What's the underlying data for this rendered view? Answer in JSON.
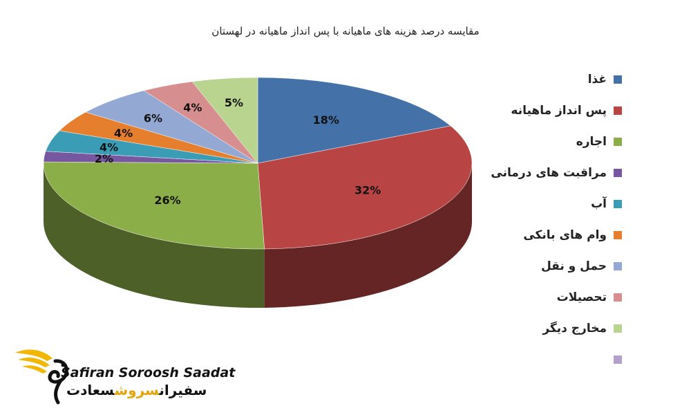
{
  "chart_data": {
    "type": "pie",
    "title": "مقایسه درصد هزینه های ماهیانه با پس انداز ماهیانه در لهستان",
    "legend_position": "right",
    "slices": [
      {
        "label": "غذا",
        "value": 18,
        "value_label": "18%",
        "color": "#4472A8"
      },
      {
        "label": "پس انداز ماهیانه",
        "value": 32,
        "value_label": "32%",
        "color": "#B94444"
      },
      {
        "label": "اجاره",
        "value": 26,
        "value_label": "26%",
        "color": "#8CAE48"
      },
      {
        "label": "مراقبت های درمانی",
        "value": 2,
        "value_label": "2%",
        "color": "#7758A0"
      },
      {
        "label": "آب",
        "value": 4,
        "value_label": "4%",
        "color": "#3A9DB5"
      },
      {
        "label": "وام های بانکی",
        "value": 4,
        "value_label": "4%",
        "color": "#E57F2E"
      },
      {
        "label": "حمل و نقل",
        "value": 6,
        "value_label": "6%",
        "color": "#93A9D3"
      },
      {
        "label": "تحصیلات",
        "value": 4,
        "value_label": "4%",
        "color": "#D68E8E"
      },
      {
        "label": "مخارج دیگر",
        "value": 5,
        "value_label": "5%",
        "color": "#B8D48E"
      }
    ],
    "extra_legend_swatch": {
      "label": "",
      "color": "#B2A1CC"
    }
  },
  "brand": {
    "name_en": "Safiran Soroosh Saadat",
    "name_fa_part1": "سفیران",
    "name_fa_part2": "سروش",
    "name_fa_part3": "سعادت",
    "colors": {
      "gold": "#F2B705",
      "dark": "#111111"
    }
  }
}
